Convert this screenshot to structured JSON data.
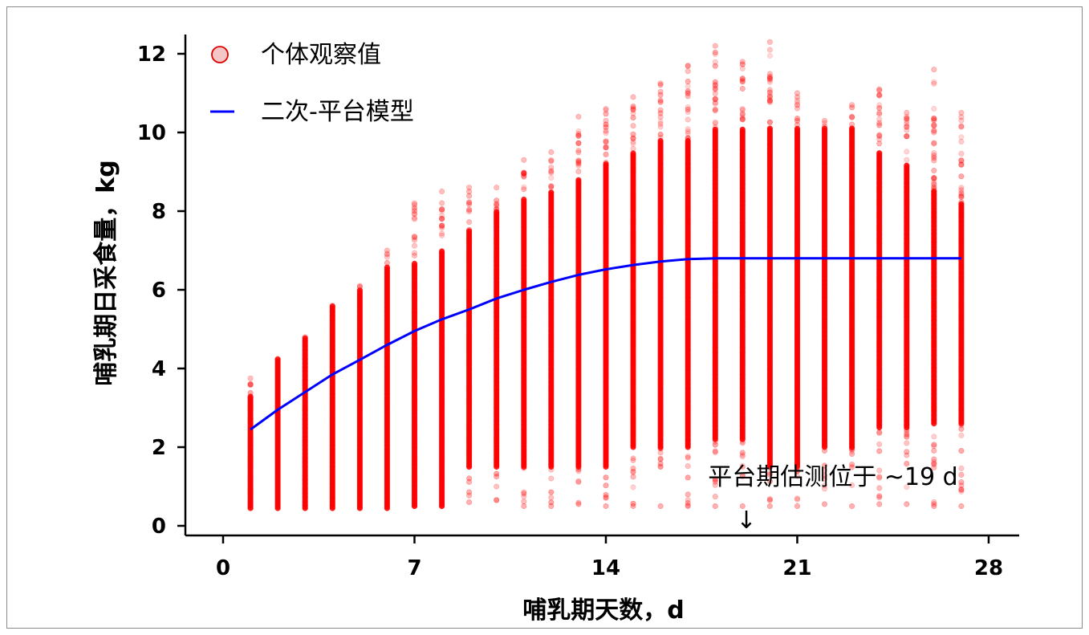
{
  "chart_data": {
    "type": "scatter",
    "title": "",
    "xlabel": "哺乳期天数，d",
    "ylabel": "哺乳期日采食量，kg",
    "xlim": [
      -1.5,
      29
    ],
    "ylim": [
      -0.3,
      12.5
    ],
    "xticks": [
      0,
      7,
      14,
      21,
      28
    ],
    "yticks": [
      0,
      2,
      4,
      6,
      8,
      10,
      12
    ],
    "grid": false,
    "legend_position": "top-left",
    "series": [
      {
        "name": "个体观察值",
        "kind": "scatter",
        "color": "#ff0000",
        "days": [
          1,
          2,
          3,
          4,
          5,
          6,
          7,
          8,
          9,
          10,
          11,
          12,
          13,
          14,
          15,
          16,
          17,
          18,
          19,
          20,
          21,
          22,
          23,
          24,
          25,
          26,
          27
        ],
        "dense_min": [
          0.45,
          0.45,
          0.45,
          0.45,
          0.45,
          0.45,
          0.5,
          0.5,
          1.5,
          1.5,
          1.5,
          1.5,
          1.5,
          1.5,
          2.0,
          2.0,
          2.0,
          2.2,
          2.2,
          1.5,
          1.5,
          2.0,
          2.0,
          2.5,
          2.5,
          2.6,
          2.6
        ],
        "dense_max": [
          3.3,
          4.25,
          4.8,
          5.6,
          6.0,
          6.6,
          6.7,
          7.0,
          7.5,
          8.0,
          8.3,
          8.5,
          8.8,
          9.2,
          9.5,
          9.8,
          9.8,
          10.1,
          10.1,
          10.1,
          10.1,
          10.1,
          10.1,
          9.5,
          9.2,
          8.5,
          8.2
        ],
        "max_values": [
          3.75,
          4.25,
          4.8,
          5.6,
          6.1,
          7.0,
          8.2,
          8.5,
          8.6,
          8.6,
          9.3,
          9.5,
          10.4,
          10.6,
          10.9,
          11.25,
          11.7,
          12.2,
          11.8,
          12.3,
          11.0,
          10.3,
          10.7,
          11.1,
          10.5,
          11.6,
          10.5
        ],
        "min_values": [
          0.45,
          0.45,
          0.45,
          0.45,
          0.45,
          0.45,
          0.5,
          0.5,
          0.6,
          0.65,
          0.5,
          0.5,
          0.55,
          0.5,
          0.5,
          0.5,
          0.5,
          0.5,
          0.5,
          0.5,
          0.5,
          0.55,
          0.5,
          0.55,
          0.55,
          0.5,
          0.5
        ]
      },
      {
        "name": "二次-平台模型",
        "kind": "line",
        "color": "#0000ff",
        "x": [
          1,
          2,
          3,
          4,
          5,
          6,
          7,
          8,
          9,
          10,
          11,
          12,
          13,
          14,
          15,
          16,
          17,
          18,
          19,
          20,
          21,
          22,
          23,
          24,
          25,
          26,
          27
        ],
        "y": [
          2.45,
          2.95,
          3.4,
          3.85,
          4.22,
          4.6,
          4.95,
          5.25,
          5.5,
          5.78,
          6.0,
          6.2,
          6.38,
          6.52,
          6.63,
          6.72,
          6.78,
          6.8,
          6.8,
          6.8,
          6.8,
          6.8,
          6.8,
          6.8,
          6.8,
          6.8,
          6.8
        ]
      }
    ],
    "annotations": [
      {
        "text": "平台期估测位于 ~19 d",
        "x": 19.2,
        "y": 0.9,
        "arrow": "↓"
      }
    ]
  }
}
